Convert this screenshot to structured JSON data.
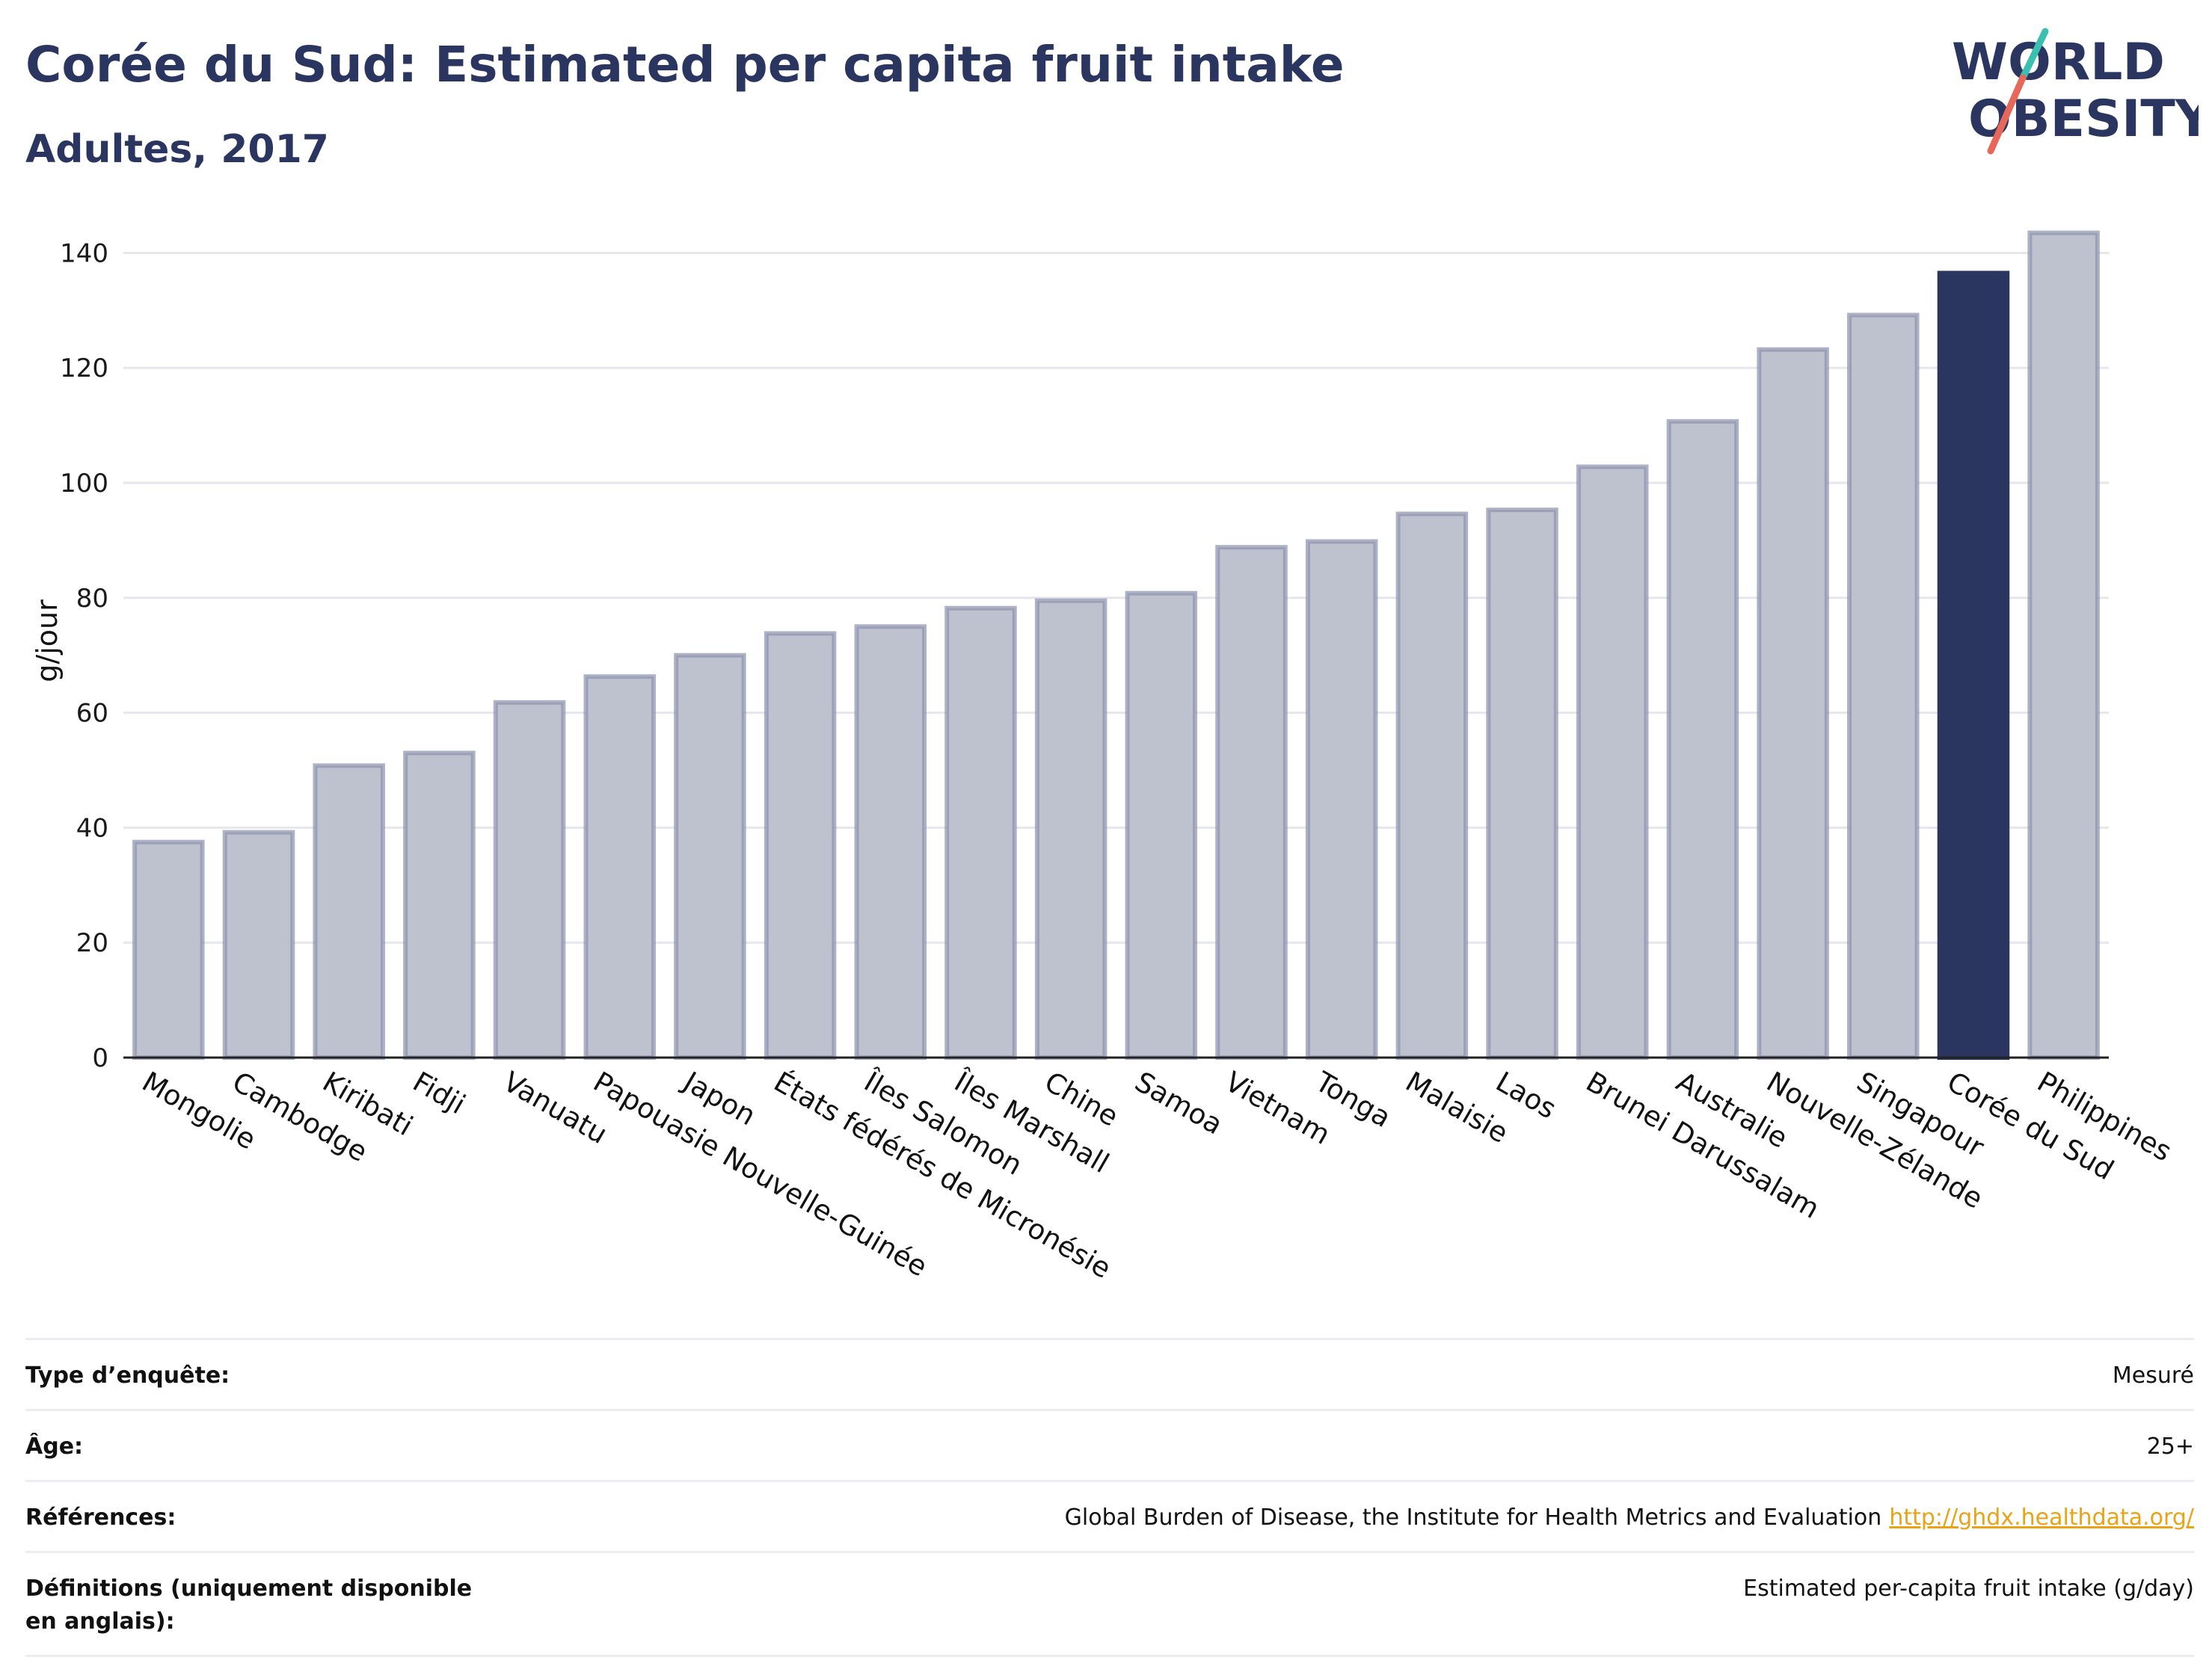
{
  "title": "Corée du Sud: Estimated per capita fruit intake",
  "subtitle": "Adultes, 2017",
  "logo": {
    "line1": "WORLD",
    "line2": "OBESITY",
    "accent_teal": "#3bbfb1",
    "accent_red": "#e7675a"
  },
  "colors": {
    "bar": "#bec1ce",
    "bar_stroke": "#8b91ae",
    "highlight": "#2a3560",
    "grid": "#e6e6ee",
    "link": "#e8a317"
  },
  "chart_data": {
    "type": "bar",
    "ylabel": "g/jour",
    "ylim": [
      0,
      145
    ],
    "yticks": [
      0,
      20,
      40,
      60,
      80,
      100,
      120,
      140
    ],
    "grid": true,
    "highlight": "Corée du Sud",
    "categories": [
      "Mongolie",
      "Cambodge",
      "Kiribati",
      "Fidji",
      "Vanuatu",
      "Papouasie Nouvelle-Guinée",
      "Japon",
      "États fédérés de Micronésie",
      "Îles Salomon",
      "Îles Marshall",
      "Chine",
      "Samoa",
      "Vietnam",
      "Tonga",
      "Malaisie",
      "Laos",
      "Brunei Darussalam",
      "Australie",
      "Nouvelle-Zélande",
      "Singapour",
      "Corée du Sud",
      "Philippines"
    ],
    "values": [
      37.5,
      39.2,
      50.8,
      53,
      61.8,
      66.3,
      70,
      73.8,
      75,
      78.2,
      79.5,
      80.8,
      88.8,
      89.8,
      94.6,
      95.3,
      102.8,
      110.7,
      123.2,
      129.2,
      136.5,
      143.5
    ]
  },
  "info": [
    {
      "key": "Type d’enquête:",
      "value": "Mesuré"
    },
    {
      "key": "Âge:",
      "value": "25+"
    },
    {
      "key": "Références:",
      "value": "Global Burden of Disease, the Institute for Health Metrics and Evaluation",
      "link": "http://ghdx.healthdata.org/"
    },
    {
      "key": "Définitions (uniquement disponible en anglais):",
      "value": "Estimated per-capita fruit intake (g/day)"
    }
  ]
}
